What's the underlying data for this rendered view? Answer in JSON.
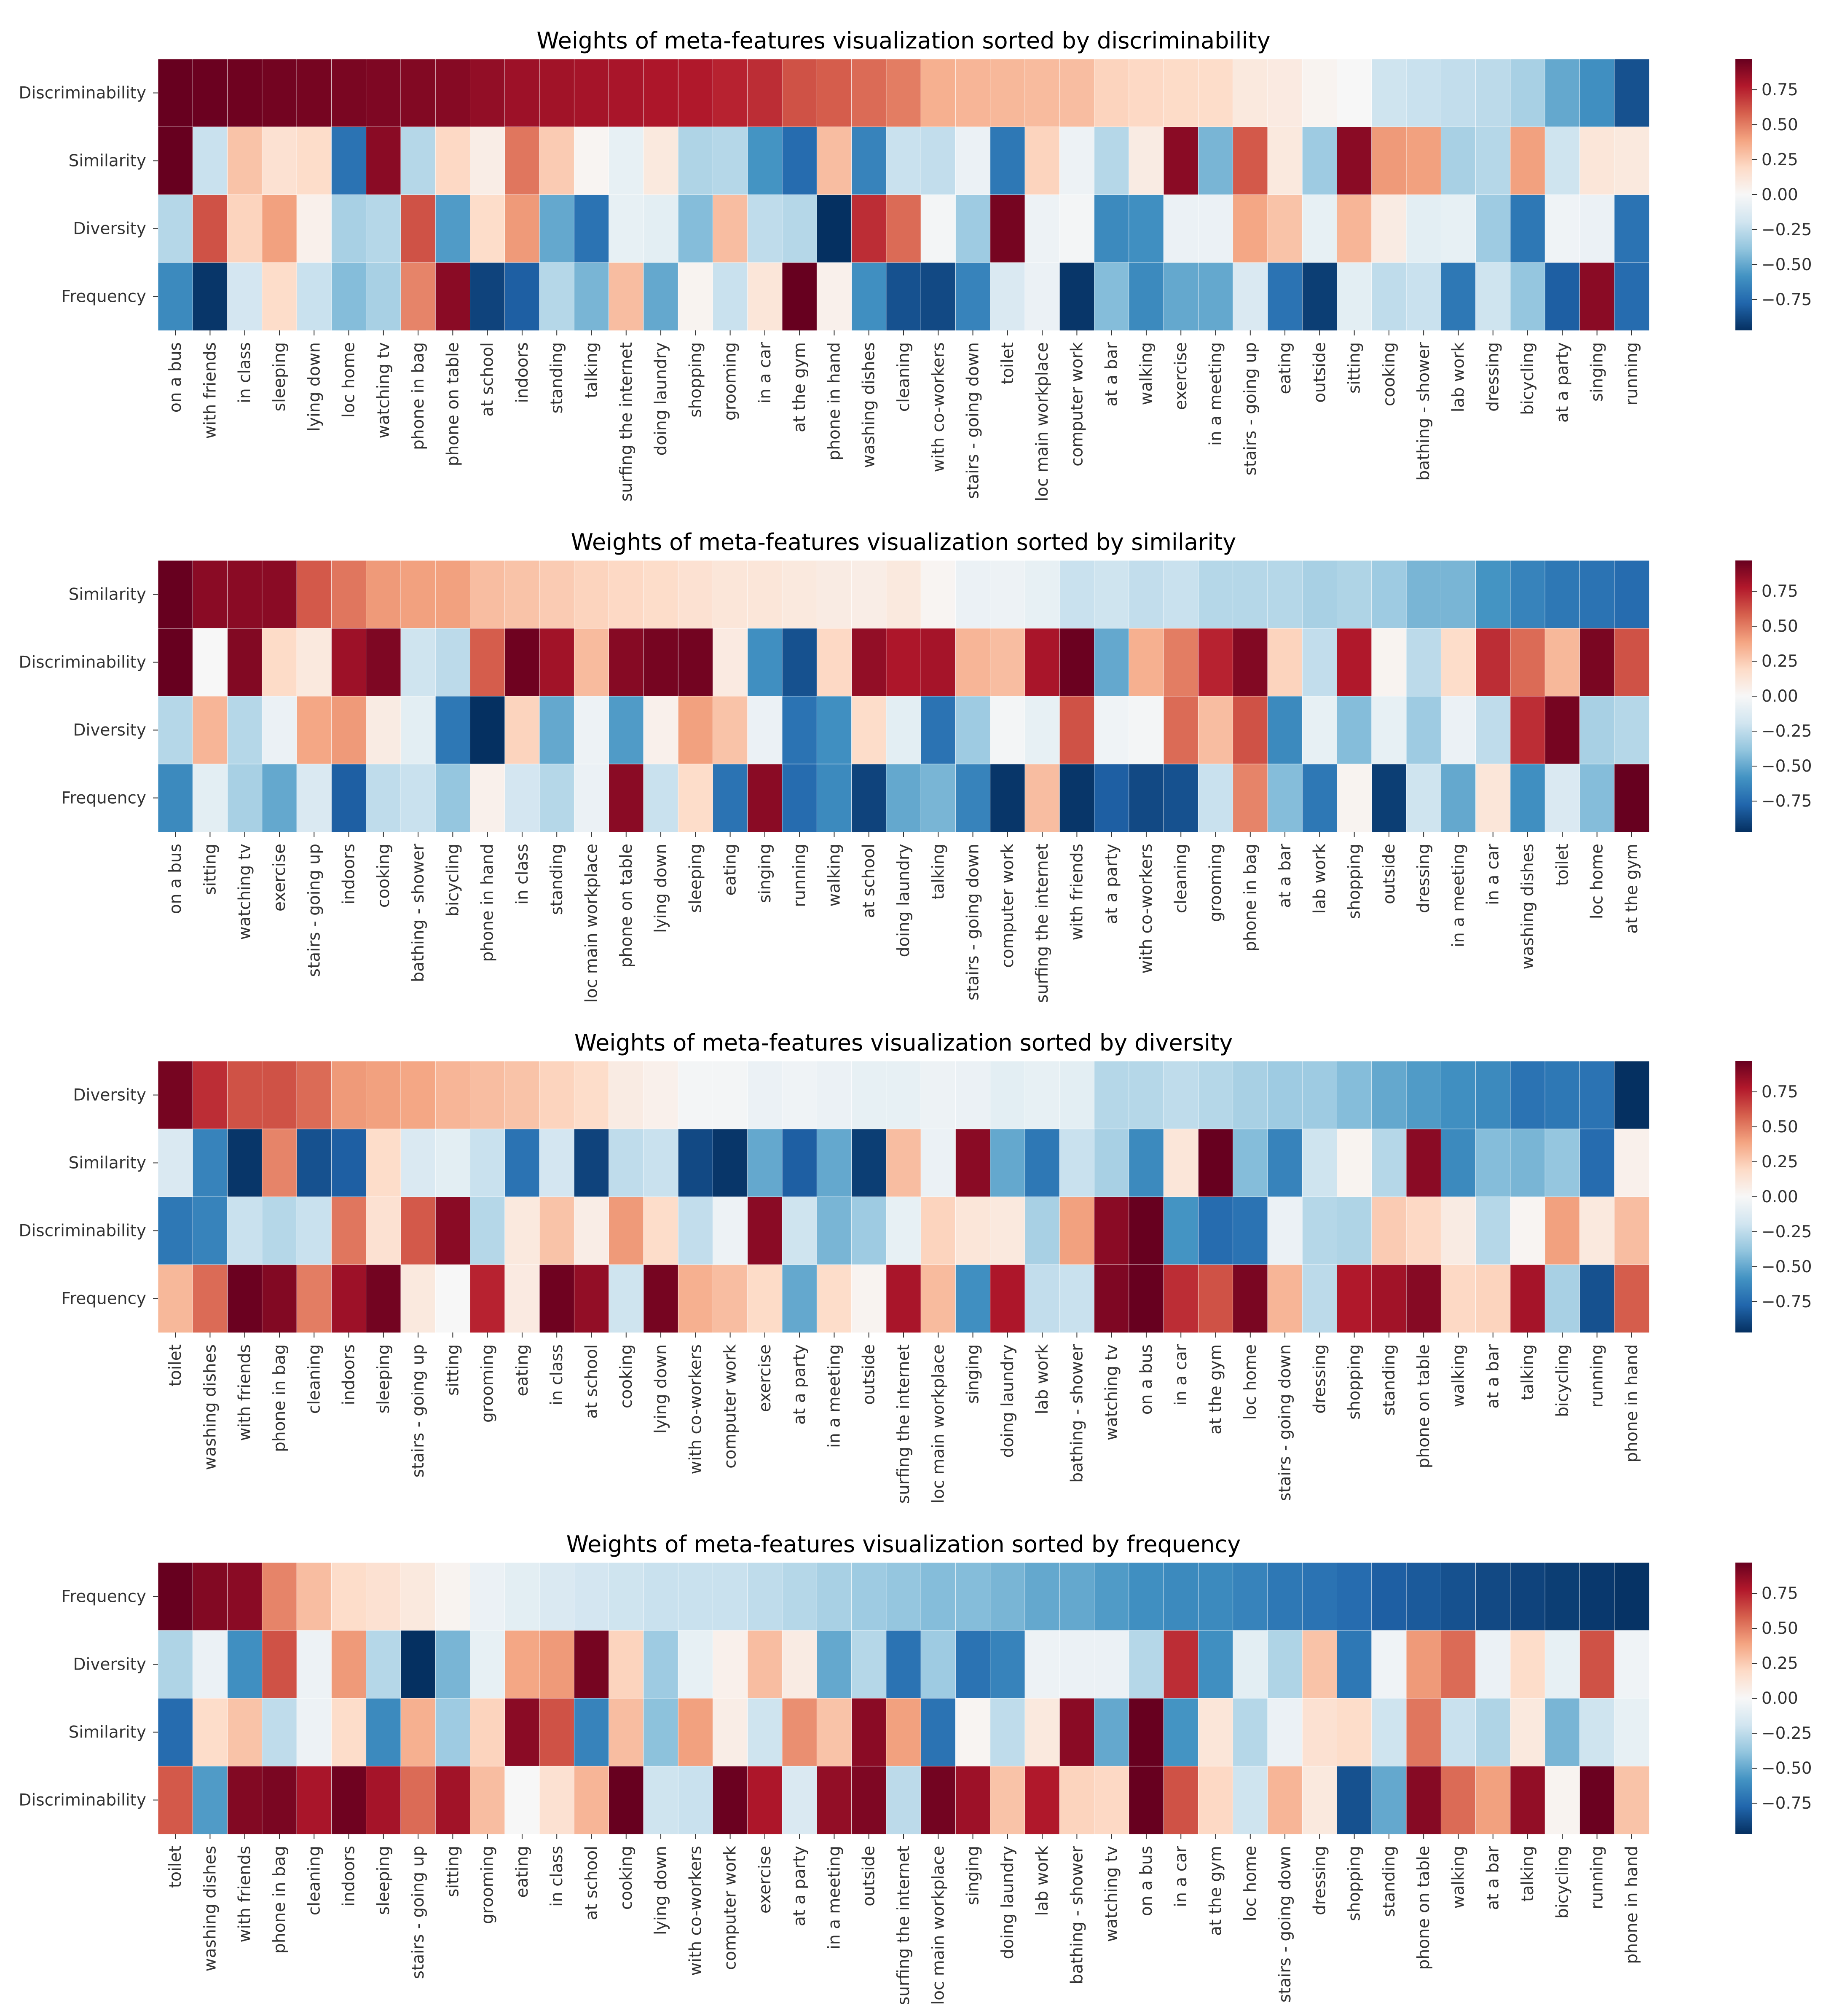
{
  "colormap": {
    "name": "RdBu_r",
    "stops": [
      "#053061",
      "#2166ac",
      "#4393c3",
      "#92c5de",
      "#d1e5f0",
      "#f7f7f7",
      "#fddbc7",
      "#f4a582",
      "#d6604d",
      "#b2182b",
      "#67001f"
    ],
    "vmin": -0.97,
    "vmax": 0.97
  },
  "chart_data": [
    {
      "type": "heatmap",
      "title": "Weights of meta-features visualization sorted by discriminability",
      "rows": [
        "Discriminability",
        "Similarity",
        "Diversity",
        "Frequency"
      ],
      "columns": [
        "on a bus",
        "with friends",
        "in class",
        "sleeping",
        "lying down",
        "loc home",
        "watching tv",
        "phone in bag",
        "phone on table",
        "at school",
        "indoors",
        "standing",
        "talking",
        "surfing the internet",
        "doing laundry",
        "shopping",
        "grooming",
        "in a car",
        "at the gym",
        "phone in hand",
        "washing dishes",
        "cleaning",
        "with co-workers",
        "stairs - going down",
        "toilet",
        "loc main workplace",
        "computer work",
        "at a bar",
        "walking",
        "exercise",
        "in a meeting",
        "stairs - going up",
        "eating",
        "outside",
        "sitting",
        "cooking",
        "bathing - shower",
        "lab work",
        "dressing",
        "bicycling",
        "at a party",
        "singing",
        "running"
      ],
      "colorbar_ticks": [
        "0.75",
        "0.50",
        "0.25",
        "0.00",
        "−0.25",
        "−0.50",
        "−0.75"
      ],
      "values": [
        [
          0.97,
          0.96,
          0.95,
          0.94,
          0.93,
          0.92,
          0.91,
          0.9,
          0.89,
          0.86,
          0.83,
          0.82,
          0.81,
          0.8,
          0.79,
          0.78,
          0.75,
          0.72,
          0.62,
          0.59,
          0.55,
          0.5,
          0.35,
          0.33,
          0.32,
          0.31,
          0.3,
          0.22,
          0.2,
          0.19,
          0.18,
          0.1,
          0.09,
          0.03,
          0.0,
          -0.2,
          -0.22,
          -0.24,
          -0.26,
          -0.32,
          -0.5,
          -0.6,
          -0.85
        ],
        [
          0.97,
          -0.22,
          0.28,
          0.15,
          0.18,
          -0.72,
          0.88,
          -0.28,
          0.2,
          0.07,
          0.52,
          0.25,
          0.02,
          -0.08,
          0.1,
          -0.3,
          -0.28,
          -0.58,
          -0.75,
          0.3,
          -0.65,
          -0.22,
          -0.24,
          -0.06,
          -0.7,
          0.22,
          -0.05,
          -0.28,
          0.08,
          0.88,
          -0.45,
          0.6,
          0.1,
          -0.35,
          0.88,
          0.42,
          0.4,
          -0.32,
          -0.28,
          0.4,
          -0.2,
          0.12,
          0.1
        ],
        [
          -0.28,
          0.62,
          0.22,
          0.4,
          0.05,
          -0.32,
          -0.28,
          0.62,
          -0.55,
          0.18,
          0.42,
          -0.5,
          -0.72,
          -0.08,
          -0.1,
          -0.42,
          0.3,
          -0.25,
          -0.28,
          -0.97,
          0.72,
          0.55,
          -0.02,
          -0.35,
          0.93,
          -0.05,
          -0.02,
          -0.62,
          -0.6,
          -0.06,
          -0.06,
          0.38,
          0.28,
          -0.08,
          0.33,
          0.08,
          -0.1,
          -0.08,
          -0.35,
          -0.7,
          -0.04,
          -0.06,
          -0.72
        ],
        [
          -0.62,
          -0.95,
          -0.18,
          0.18,
          -0.22,
          -0.42,
          -0.32,
          0.48,
          0.88,
          -0.9,
          -0.8,
          -0.28,
          -0.45,
          0.3,
          -0.5,
          0.03,
          -0.22,
          0.12,
          0.97,
          0.05,
          -0.6,
          -0.85,
          -0.88,
          -0.65,
          -0.15,
          -0.06,
          -0.95,
          -0.42,
          -0.62,
          -0.5,
          -0.5,
          -0.15,
          -0.72,
          -0.92,
          -0.1,
          -0.25,
          -0.22,
          -0.7,
          -0.2,
          -0.38,
          -0.8,
          0.88,
          -0.75
        ]
      ]
    },
    {
      "type": "heatmap",
      "title": "Weights of meta-features visualization sorted by similarity",
      "rows": [
        "Similarity",
        "Discriminability",
        "Diversity",
        "Frequency"
      ],
      "columns": [
        "on a bus",
        "sitting",
        "watching tv",
        "exercise",
        "stairs - going up",
        "indoors",
        "cooking",
        "bathing - shower",
        "bicycling",
        "phone in hand",
        "in class",
        "standing",
        "loc main workplace",
        "phone on table",
        "lying down",
        "sleeping",
        "eating",
        "singing",
        "running",
        "walking",
        "at school",
        "doing laundry",
        "talking",
        "stairs - going down",
        "computer work",
        "surfing the internet",
        "with friends",
        "at a party",
        "with co-workers",
        "cleaning",
        "grooming",
        "phone in bag",
        "at a bar",
        "lab work",
        "shopping",
        "outside",
        "dressing",
        "in a meeting",
        "in a car",
        "washing dishes",
        "toilet",
        "loc home",
        "at the gym"
      ],
      "colorbar_ticks": [
        "0.75",
        "0.50",
        "0.25",
        "0.00",
        "−0.25",
        "−0.50",
        "−0.75"
      ],
      "values": [
        [
          0.97,
          0.88,
          0.88,
          0.88,
          0.6,
          0.52,
          0.42,
          0.4,
          0.4,
          0.3,
          0.28,
          0.25,
          0.22,
          0.2,
          0.18,
          0.15,
          0.12,
          0.12,
          0.1,
          0.08,
          0.07,
          0.1,
          0.02,
          -0.06,
          -0.05,
          -0.08,
          -0.22,
          -0.2,
          -0.24,
          -0.22,
          -0.28,
          -0.28,
          -0.28,
          -0.32,
          -0.3,
          -0.35,
          -0.45,
          -0.45,
          -0.58,
          -0.65,
          -0.7,
          -0.72,
          -0.75
        ],
        [
          0.97,
          0.0,
          0.9,
          0.19,
          0.1,
          0.83,
          0.91,
          -0.2,
          -0.26,
          0.59,
          0.95,
          0.82,
          0.31,
          0.89,
          0.93,
          0.94,
          0.09,
          -0.6,
          -0.85,
          0.2,
          0.86,
          0.79,
          0.81,
          0.33,
          0.3,
          0.8,
          0.96,
          -0.5,
          0.35,
          0.5,
          0.75,
          0.9,
          0.22,
          -0.24,
          0.78,
          0.03,
          -0.26,
          0.18,
          0.72,
          0.55,
          0.32,
          0.92,
          0.62
        ],
        [
          -0.28,
          0.33,
          -0.28,
          -0.06,
          0.38,
          0.42,
          0.08,
          -0.1,
          -0.7,
          -0.97,
          0.22,
          -0.5,
          -0.05,
          -0.55,
          0.05,
          0.4,
          0.28,
          -0.06,
          -0.72,
          -0.6,
          0.18,
          -0.1,
          -0.72,
          -0.35,
          -0.02,
          -0.08,
          0.62,
          -0.04,
          -0.02,
          0.55,
          0.3,
          0.62,
          -0.62,
          -0.08,
          -0.42,
          -0.08,
          -0.35,
          -0.06,
          -0.25,
          0.72,
          0.93,
          -0.32,
          -0.28
        ],
        [
          -0.62,
          -0.1,
          -0.32,
          -0.5,
          -0.15,
          -0.8,
          -0.25,
          -0.22,
          -0.38,
          0.05,
          -0.18,
          -0.28,
          -0.06,
          0.88,
          -0.22,
          0.18,
          -0.72,
          0.88,
          -0.75,
          -0.62,
          -0.9,
          -0.5,
          -0.45,
          -0.65,
          -0.95,
          0.3,
          -0.95,
          -0.8,
          -0.88,
          -0.85,
          -0.22,
          0.48,
          -0.42,
          -0.7,
          0.03,
          -0.92,
          -0.2,
          -0.5,
          0.12,
          -0.6,
          -0.15,
          -0.42,
          0.97
        ]
      ]
    },
    {
      "type": "heatmap",
      "title": "Weights of meta-features visualization sorted by diversity",
      "rows": [
        "Diversity",
        "Similarity",
        "Discriminability",
        "Frequency"
      ],
      "columns": [
        "toilet",
        "washing dishes",
        "with friends",
        "phone in bag",
        "cleaning",
        "indoors",
        "sleeping",
        "stairs - going up",
        "sitting",
        "grooming",
        "eating",
        "in class",
        "at school",
        "cooking",
        "lying down",
        "with co-workers",
        "computer work",
        "exercise",
        "at a party",
        "in a meeting",
        "outside",
        "surfing the internet",
        "loc main workplace",
        "singing",
        "doing laundry",
        "lab work",
        "bathing - shower",
        "watching tv",
        "on a bus",
        "in a car",
        "at the gym",
        "loc home",
        "stairs - going down",
        "dressing",
        "shopping",
        "standing",
        "phone on table",
        "walking",
        "at a bar",
        "talking",
        "bicycling",
        "running",
        "phone in hand"
      ],
      "colorbar_ticks": [
        "0.75",
        "0.50",
        "0.25",
        "0.00",
        "−0.25",
        "−0.50",
        "−0.75"
      ],
      "values": [
        [
          0.93,
          0.72,
          0.62,
          0.62,
          0.55,
          0.42,
          0.4,
          0.38,
          0.33,
          0.3,
          0.28,
          0.22,
          0.18,
          0.08,
          0.05,
          -0.02,
          -0.02,
          -0.06,
          -0.04,
          -0.06,
          -0.08,
          -0.08,
          -0.05,
          -0.06,
          -0.1,
          -0.08,
          -0.1,
          -0.28,
          -0.28,
          -0.25,
          -0.28,
          -0.32,
          -0.35,
          -0.35,
          -0.42,
          -0.5,
          -0.55,
          -0.6,
          -0.62,
          -0.72,
          -0.7,
          -0.72,
          -0.97
        ],
        [
          -0.15,
          -0.65,
          -0.95,
          0.48,
          -0.85,
          -0.8,
          0.18,
          -0.15,
          -0.1,
          -0.22,
          -0.72,
          -0.18,
          -0.9,
          -0.25,
          -0.22,
          -0.88,
          -0.95,
          -0.5,
          -0.8,
          -0.5,
          -0.92,
          0.3,
          -0.06,
          0.88,
          -0.5,
          -0.7,
          -0.22,
          -0.32,
          -0.62,
          0.12,
          0.97,
          -0.42,
          -0.65,
          -0.2,
          0.03,
          -0.28,
          0.88,
          -0.62,
          -0.42,
          -0.45,
          -0.38,
          -0.75,
          0.05
        ],
        [
          -0.7,
          -0.65,
          -0.22,
          -0.28,
          -0.22,
          0.52,
          0.15,
          0.6,
          0.88,
          -0.28,
          0.1,
          0.28,
          0.07,
          0.42,
          0.18,
          -0.24,
          -0.05,
          0.88,
          -0.2,
          -0.45,
          -0.35,
          -0.08,
          0.22,
          0.12,
          0.1,
          -0.32,
          0.4,
          0.88,
          0.97,
          -0.58,
          -0.75,
          -0.72,
          -0.06,
          -0.28,
          -0.3,
          0.25,
          0.2,
          0.08,
          -0.28,
          0.02,
          0.4,
          0.1,
          0.3
        ],
        [
          0.32,
          0.55,
          0.96,
          0.9,
          0.5,
          0.83,
          0.94,
          0.1,
          0.0,
          0.75,
          0.09,
          0.95,
          0.86,
          -0.2,
          0.93,
          0.35,
          0.3,
          0.19,
          -0.5,
          0.18,
          0.03,
          0.8,
          0.31,
          -0.6,
          0.79,
          -0.24,
          -0.22,
          0.91,
          0.97,
          0.72,
          0.62,
          0.92,
          0.33,
          -0.26,
          0.78,
          0.82,
          0.89,
          0.2,
          0.22,
          0.81,
          -0.32,
          -0.85,
          0.59
        ]
      ]
    },
    {
      "type": "heatmap",
      "title": "Weights of meta-features visualization sorted by frequency",
      "rows": [
        "Frequency",
        "Diversity",
        "Similarity",
        "Discriminability"
      ],
      "columns": [
        "toilet",
        "washing dishes",
        "with friends",
        "phone in bag",
        "cleaning",
        "indoors",
        "sleeping",
        "stairs - going up",
        "sitting",
        "grooming",
        "eating",
        "in class",
        "at school",
        "cooking",
        "lying down",
        "with co-workers",
        "computer work",
        "exercise",
        "at a party",
        "in a meeting",
        "outside",
        "surfing the internet",
        "loc main workplace",
        "singing",
        "doing laundry",
        "lab work",
        "bathing - shower",
        "watching tv",
        "on a bus",
        "in a car",
        "at the gym",
        "loc home",
        "stairs - going down",
        "dressing",
        "shopping",
        "standing",
        "phone on table",
        "walking",
        "at a bar",
        "talking",
        "bicycling",
        "running",
        "phone in hand"
      ],
      "colorbar_ticks": [
        "0.75",
        "0.50",
        "0.25",
        "0.00",
        "−0.25",
        "−0.50",
        "−0.75"
      ],
      "values": [
        [
          0.97,
          0.9,
          0.88,
          0.48,
          0.3,
          0.18,
          0.15,
          0.1,
          0.03,
          -0.06,
          -0.1,
          -0.15,
          -0.18,
          -0.2,
          -0.22,
          -0.22,
          -0.22,
          -0.25,
          -0.28,
          -0.32,
          -0.35,
          -0.38,
          -0.42,
          -0.42,
          -0.45,
          -0.5,
          -0.5,
          -0.55,
          -0.6,
          -0.62,
          -0.62,
          -0.65,
          -0.7,
          -0.72,
          -0.75,
          -0.8,
          -0.82,
          -0.85,
          -0.88,
          -0.9,
          -0.92,
          -0.94,
          -0.96
        ],
        [
          -0.3,
          -0.06,
          -0.6,
          0.62,
          -0.05,
          0.42,
          -0.28,
          -0.97,
          -0.45,
          -0.08,
          0.38,
          0.42,
          0.93,
          0.22,
          -0.35,
          -0.08,
          0.05,
          0.3,
          0.08,
          -0.5,
          -0.28,
          -0.72,
          -0.35,
          -0.72,
          -0.65,
          -0.05,
          -0.06,
          -0.06,
          -0.28,
          0.72,
          -0.6,
          -0.1,
          -0.3,
          0.28,
          -0.7,
          -0.04,
          0.42,
          0.55,
          -0.06,
          0.18,
          -0.08,
          0.62,
          -0.04
        ],
        [
          -0.75,
          0.18,
          0.28,
          -0.25,
          -0.05,
          0.18,
          -0.62,
          0.35,
          -0.35,
          0.22,
          0.88,
          0.62,
          -0.65,
          0.3,
          -0.4,
          0.4,
          0.07,
          -0.2,
          0.45,
          0.28,
          0.88,
          0.4,
          -0.72,
          0.02,
          -0.25,
          0.1,
          0.88,
          -0.5,
          0.97,
          -0.58,
          0.12,
          -0.28,
          -0.06,
          0.15,
          0.18,
          -0.2,
          0.52,
          -0.22,
          -0.3,
          0.1,
          -0.45,
          -0.2,
          -0.08
        ],
        [
          0.6,
          -0.55,
          0.9,
          0.92,
          0.8,
          0.95,
          0.81,
          0.55,
          0.82,
          0.3,
          0.0,
          0.15,
          0.33,
          0.97,
          -0.2,
          -0.22,
          0.96,
          0.79,
          -0.15,
          0.86,
          0.91,
          -0.26,
          0.94,
          0.83,
          0.28,
          0.78,
          0.22,
          0.2,
          0.97,
          0.62,
          0.2,
          -0.2,
          0.33,
          0.1,
          -0.85,
          -0.5,
          0.89,
          0.55,
          0.4,
          0.86,
          0.03,
          0.96,
          0.28
        ]
      ]
    }
  ]
}
